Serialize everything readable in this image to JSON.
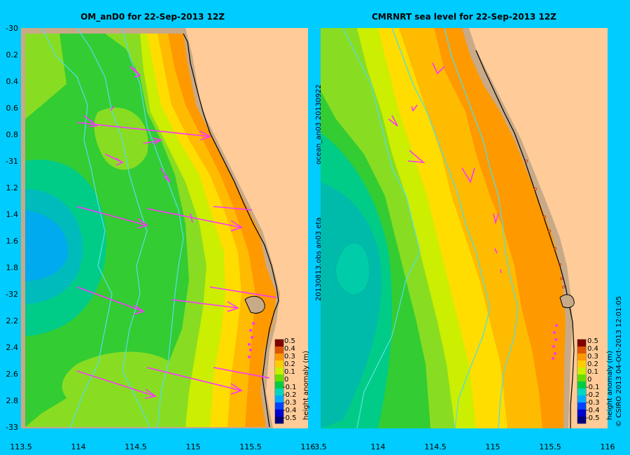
{
  "left_panel": {
    "title": "OM_anD0 for 22-Sep-2013 12Z",
    "y_ticks": [
      "-30",
      "0.2",
      "0.4",
      "0.6",
      "0.8",
      "-31",
      "1.2",
      "1.4",
      "1.6",
      "1.8",
      "-32",
      "2.2",
      "2.4",
      "2.6",
      "2.8",
      "-33"
    ],
    "x_ticks": [
      "113.5",
      "114",
      "114.5",
      "115",
      "115.5",
      "116"
    ],
    "colorbar": {
      "label": "height anomaly (m)",
      "ticks": [
        "0.5",
        "0.4",
        "0.3",
        "0.2",
        "0.1",
        "0",
        "-0.1",
        "-0.2",
        "-0.3",
        "-0.4",
        "-0.5"
      ]
    }
  },
  "right_panel": {
    "title": "CMRNRT sea level  for 22-Sep-2013 12Z",
    "y_ticks": [],
    "x_ticks": [
      "3.5",
      "114",
      "114.5",
      "115",
      "115.5",
      "116"
    ],
    "colorbar": {
      "label": "height anomaly (m)",
      "ticks": [
        "0.5",
        "0.4",
        "0.3",
        "0.2",
        "0.1",
        "0",
        "-0.1",
        "-0.2",
        "-0.3",
        "-0.4",
        "-0.5"
      ]
    }
  },
  "side_label_top": "ocean_an03  20130922",
  "side_label_bottom": "20130813.obs  an03  eta",
  "credit": "© CSIRO 2013   04-Oct-2013 12:01:05",
  "colors": {
    "background": "#00ccff",
    "land": "#ffcc99",
    "shelf_land": "#c8aa88",
    "vectors": "#ff33ff",
    "isobaths": "#55dddd",
    "colorbar": [
      "#00007f",
      "#0000d0",
      "#0044ff",
      "#00aaff",
      "#00d6c0",
      "#00cc44",
      "#66dd00",
      "#ccee00",
      "#ffdd00",
      "#ff9900",
      "#dd5500",
      "#aa2200",
      "#7f0000"
    ]
  }
}
